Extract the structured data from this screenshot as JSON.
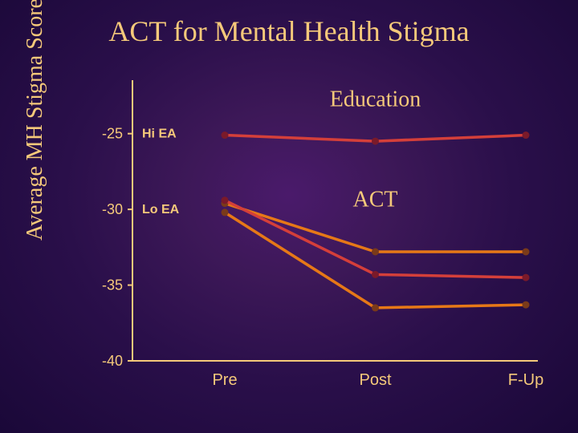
{
  "title": "ACT for Mental Health Stigma",
  "ylabel": "Average MH Stigma Score",
  "chart": {
    "type": "line",
    "ylim": [
      -40,
      -22
    ],
    "yticks": [
      -25,
      -30,
      -35,
      -40
    ],
    "categories": [
      "Pre",
      "Post",
      "F-Up"
    ],
    "series": [
      {
        "id": "edu-hi",
        "label": "Hi EA",
        "label_at_y": -25,
        "values": [
          -25.1,
          -25.5,
          -25.1
        ],
        "color": "#d43f3a",
        "marker_color": "#7a1a2a"
      },
      {
        "id": "edu-lo",
        "label": "Lo EA",
        "label_at_y": -30,
        "values": [
          -29.6,
          -32.8,
          -32.8
        ],
        "color": "#e67817",
        "marker_color": "#7a3a1a"
      },
      {
        "id": "act-hi",
        "label": null,
        "values": [
          -29.4,
          -34.3,
          -34.5
        ],
        "color": "#d43f3a",
        "marker_color": "#7a1a2a"
      },
      {
        "id": "act-lo",
        "label": null,
        "values": [
          -30.2,
          -36.5,
          -36.3
        ],
        "color": "#e67817",
        "marker_color": "#7a3a1a"
      }
    ],
    "annotations": [
      {
        "text": "Education",
        "x": "Post",
        "y": -23.2
      },
      {
        "text": "ACT",
        "x": "Post",
        "y": -29.8
      }
    ],
    "line_width": 3.5,
    "marker_radius": 4.5,
    "label_fontsize": 28,
    "title_fontsize": 36,
    "tick_fontsize": 18,
    "axis_color": "#f5c97a",
    "text_color": "#f5c97a",
    "background": "radial-gradient purple"
  }
}
